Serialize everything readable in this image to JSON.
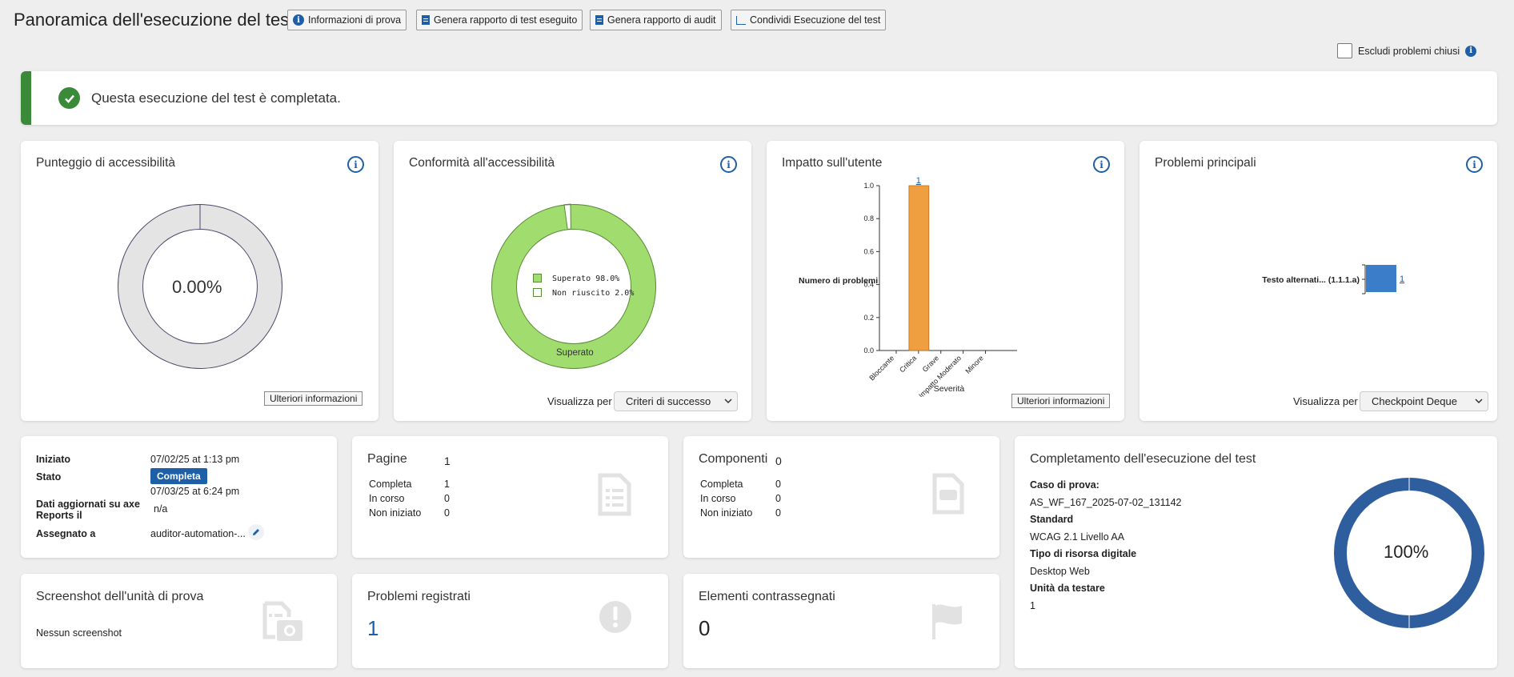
{
  "header": {
    "title": "Panoramica dell'esecuzione del test",
    "buttons": {
      "test_info": "Informazioni di prova",
      "run_report": "Genera rapporto di test eseguito",
      "audit_report": "Genera rapporto di audit",
      "share": "Condividi Esecuzione del test"
    },
    "exclude_closed": "Escludi problemi chiusi"
  },
  "banner": {
    "message": "Questa esecuzione del test è completata."
  },
  "score_card": {
    "title": "Punteggio di accessibilità",
    "value": "0.00%",
    "more_info": "Ulteriori informazioni"
  },
  "conformance_card": {
    "title": "Conformità all'accessibilità",
    "legend_pass": "Superato 98.0%",
    "legend_fail": "Non riuscito 2.0%",
    "slice_label": "Superato",
    "view_by_label": "Visualizza per",
    "view_by_value": "Criteri di successo"
  },
  "impact_card": {
    "title": "Impatto sull'utente",
    "more_info": "Ulteriori informazioni"
  },
  "top_issues_card": {
    "title": "Problemi principali",
    "view_by_label": "Visualizza per",
    "view_by_value": "Checkpoint Deque"
  },
  "details_card": {
    "started_label": "Iniziato",
    "started_value": "07/02/25 at 1:13 pm",
    "status_label": "Stato",
    "status_value": "Completa",
    "updated_label_1": "Dati aggiornati su axe",
    "updated_label_2": "Reports il",
    "updated_value_1": "07/03/25 at 6:24 pm",
    "updated_value_2": "n/a",
    "assigned_label": "Assegnato a",
    "assigned_value": "auditor-automation-..."
  },
  "pages_card": {
    "title": "Pagine",
    "count": "1",
    "rows": [
      {
        "label": "Completa",
        "value": "1"
      },
      {
        "label": "In corso",
        "value": "0"
      },
      {
        "label": "Non iniziato",
        "value": "0"
      }
    ]
  },
  "components_card": {
    "title": "Componenti",
    "count": "0",
    "rows": [
      {
        "label": "Completa",
        "value": "0"
      },
      {
        "label": "In corso",
        "value": "0"
      },
      {
        "label": "Non iniziato",
        "value": "0"
      }
    ]
  },
  "completion_card": {
    "title": "Completamento dell'esecuzione del test",
    "case_label": "Caso di prova:",
    "case_value": "AS_WF_167_2025-07-02_131142",
    "standard_label": "Standard",
    "standard_value": "WCAG 2.1 Livello AA",
    "asset_label": "Tipo di risorsa digitale",
    "asset_value": "Desktop Web",
    "units_label": "Unità da testare",
    "units_value": "1",
    "percent": "100%"
  },
  "screenshot_card": {
    "title": "Screenshot dell'unità di prova",
    "empty": "Nessun screenshot"
  },
  "issues_card": {
    "title": "Problemi registrati",
    "count": "1"
  },
  "flagged_card": {
    "title": "Elementi contrassegnati",
    "count": "0"
  },
  "colors": {
    "accent": "#1f5fa8",
    "success": "#3a8a3a",
    "pass": "#a0dc6e",
    "bar": "#ef9f3f",
    "bar_blue": "#3b7dc9"
  },
  "chart_data": [
    {
      "type": "pie",
      "title": "Punteggio di accessibilità",
      "center_label": "0.00%",
      "values": [
        0,
        100
      ]
    },
    {
      "type": "pie",
      "title": "Conformità all'accessibilità",
      "categories": [
        "Superato",
        "Non riuscito"
      ],
      "values": [
        98.0,
        2.0
      ]
    },
    {
      "type": "bar",
      "title": "Impatto sull'utente",
      "categories": [
        "Bloccante",
        "Critica",
        "Grave",
        "Impatto Moderato",
        "Minore"
      ],
      "values": [
        0,
        1,
        0,
        0,
        0
      ],
      "xlabel": "Severità",
      "ylabel": "Numero di problemi",
      "ylim": [
        0,
        1.0
      ],
      "yticks": [
        "0.0",
        "0.2",
        "0.4",
        "0.6",
        "0.8",
        "1.0"
      ],
      "data_labels": [
        "",
        "1",
        "",
        "",
        ""
      ]
    },
    {
      "type": "bar",
      "title": "Problemi principali",
      "categories": [
        "Testo alternati... (1.1.1.a)"
      ],
      "values": [
        1
      ],
      "data_labels": [
        "1"
      ]
    },
    {
      "type": "pie",
      "title": "Completamento dell'esecuzione del test",
      "center_label": "100%",
      "values": [
        100
      ]
    }
  ]
}
